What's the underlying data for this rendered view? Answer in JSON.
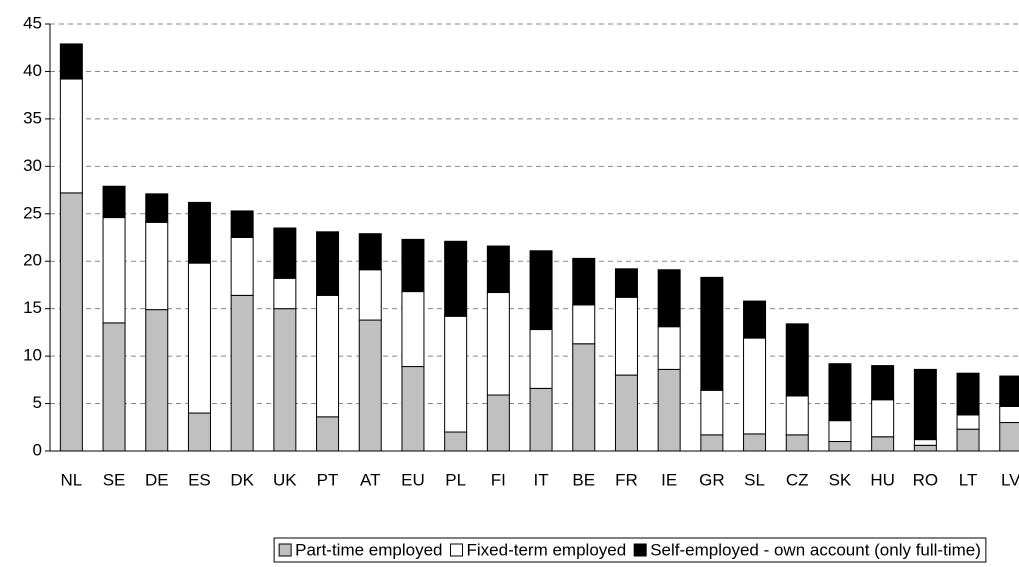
{
  "chart_data": {
    "type": "stacked_bar",
    "categories": [
      "NL",
      "SE",
      "DE",
      "ES",
      "DK",
      "UK",
      "PT",
      "AT",
      "EU",
      "PL",
      "FI",
      "IT",
      "BE",
      "FR",
      "IE",
      "GR",
      "SL",
      "CZ",
      "SK",
      "HU",
      "RO",
      "LT",
      "LV"
    ],
    "series": [
      {
        "name": "Part-time employed",
        "color": "#c0c0c0",
        "values": [
          27.2,
          13.5,
          14.9,
          4.0,
          16.4,
          15.0,
          3.6,
          13.8,
          8.9,
          2.0,
          5.9,
          6.6,
          11.3,
          8.0,
          8.6,
          1.7,
          1.8,
          1.7,
          1.0,
          1.5,
          0.6,
          2.3,
          3.0
        ]
      },
      {
        "name": "Fixed-term employed",
        "color": "#ffffff",
        "values": [
          12.0,
          11.1,
          9.2,
          15.8,
          6.1,
          3.2,
          12.8,
          5.3,
          7.9,
          12.2,
          10.8,
          6.2,
          4.1,
          8.2,
          4.5,
          4.7,
          10.1,
          4.1,
          2.2,
          3.9,
          0.6,
          1.5,
          1.7
        ]
      },
      {
        "name": "Self-employed - own account (only full-time)",
        "color": "#000000",
        "values": [
          3.7,
          3.3,
          3.0,
          6.4,
          2.8,
          5.3,
          6.7,
          3.8,
          5.5,
          7.9,
          4.9,
          8.3,
          4.9,
          3.0,
          6.0,
          11.9,
          3.9,
          7.6,
          6.0,
          3.6,
          7.4,
          4.4,
          3.2
        ]
      }
    ],
    "ylim": [
      0,
      45
    ],
    "yticks": [
      0,
      5,
      10,
      15,
      20,
      25,
      30,
      35,
      40,
      45
    ],
    "grid": true,
    "legend": "bottom"
  }
}
